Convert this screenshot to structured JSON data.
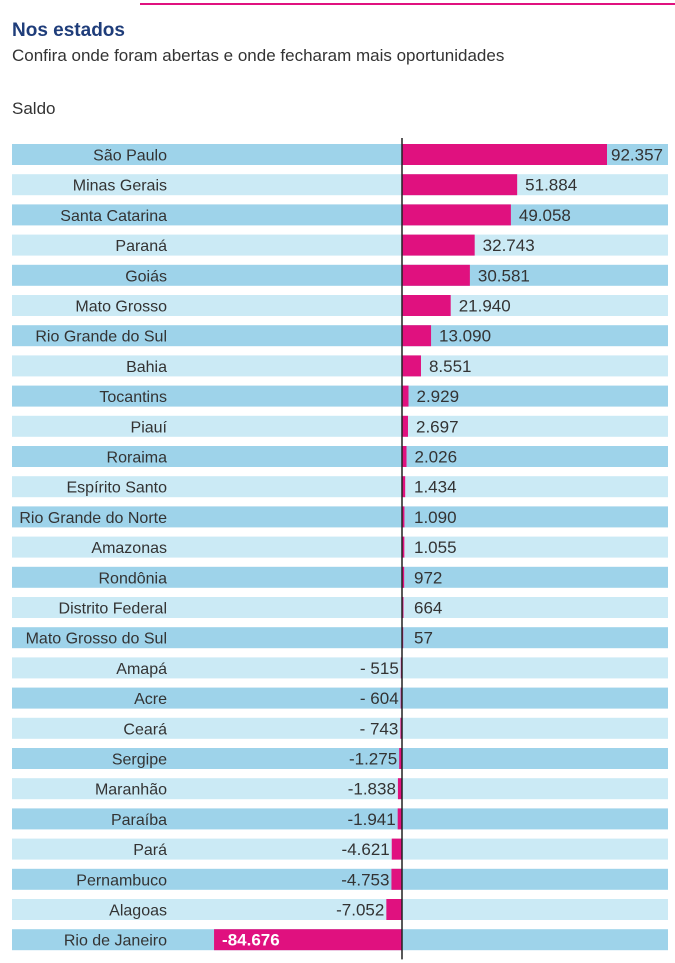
{
  "header": {
    "title": "Nos estados",
    "subtitle": "Confira onde foram abertas e onde fecharam mais oportunidades",
    "label": "Saldo"
  },
  "colors": {
    "bar": "#e0117f",
    "row_dark": "#9ed3ea",
    "row_light": "#cbeaf5",
    "axis": "#222222",
    "title": "#1f3d7a",
    "text": "#333333"
  },
  "chart_data": {
    "type": "bar",
    "orientation": "horizontal",
    "title": "Nos estados",
    "subtitle": "Confira onde foram abertas e onde fecharam mais oportunidades",
    "xlabel": "Saldo",
    "ylabel": "",
    "categories": [
      "São Paulo",
      "Minas Gerais",
      "Santa Catarina",
      "Paraná",
      "Goiás",
      "Mato Grosso",
      "Rio Grande do Sul",
      "Bahia",
      "Tocantins",
      "Piauí",
      "Roraima",
      "Espírito Santo",
      "Rio Grande do Norte",
      "Amazonas",
      "Rondônia",
      "Distrito Federal",
      "Mato Grosso do Sul",
      "Amapá",
      "Acre",
      "Ceará",
      "Sergipe",
      "Maranhão",
      "Paraíba",
      "Pará",
      "Pernambuco",
      "Alagoas",
      "Rio de Janeiro"
    ],
    "values": [
      92357,
      51884,
      49058,
      32743,
      30581,
      21940,
      13090,
      8551,
      2929,
      2697,
      2026,
      1434,
      1090,
      1055,
      972,
      664,
      57,
      -515,
      -604,
      -743,
      -1275,
      -1838,
      -1941,
      -4621,
      -4753,
      -7052,
      -84676
    ],
    "value_labels": [
      "92.357",
      "51.884",
      "49.058",
      "32.743",
      "30.581",
      "21.940",
      "13.090",
      "8.551",
      "2.929",
      "2.697",
      "2.026",
      "1.434",
      "1.090",
      "1.055",
      "972",
      "664",
      "57",
      "- 515",
      "- 604",
      "- 743",
      "-1.275",
      "-1.838",
      "-1.941",
      "-4.621",
      "-4.753",
      "-7.052",
      "-84.676"
    ],
    "grid": false,
    "legend": "none"
  }
}
